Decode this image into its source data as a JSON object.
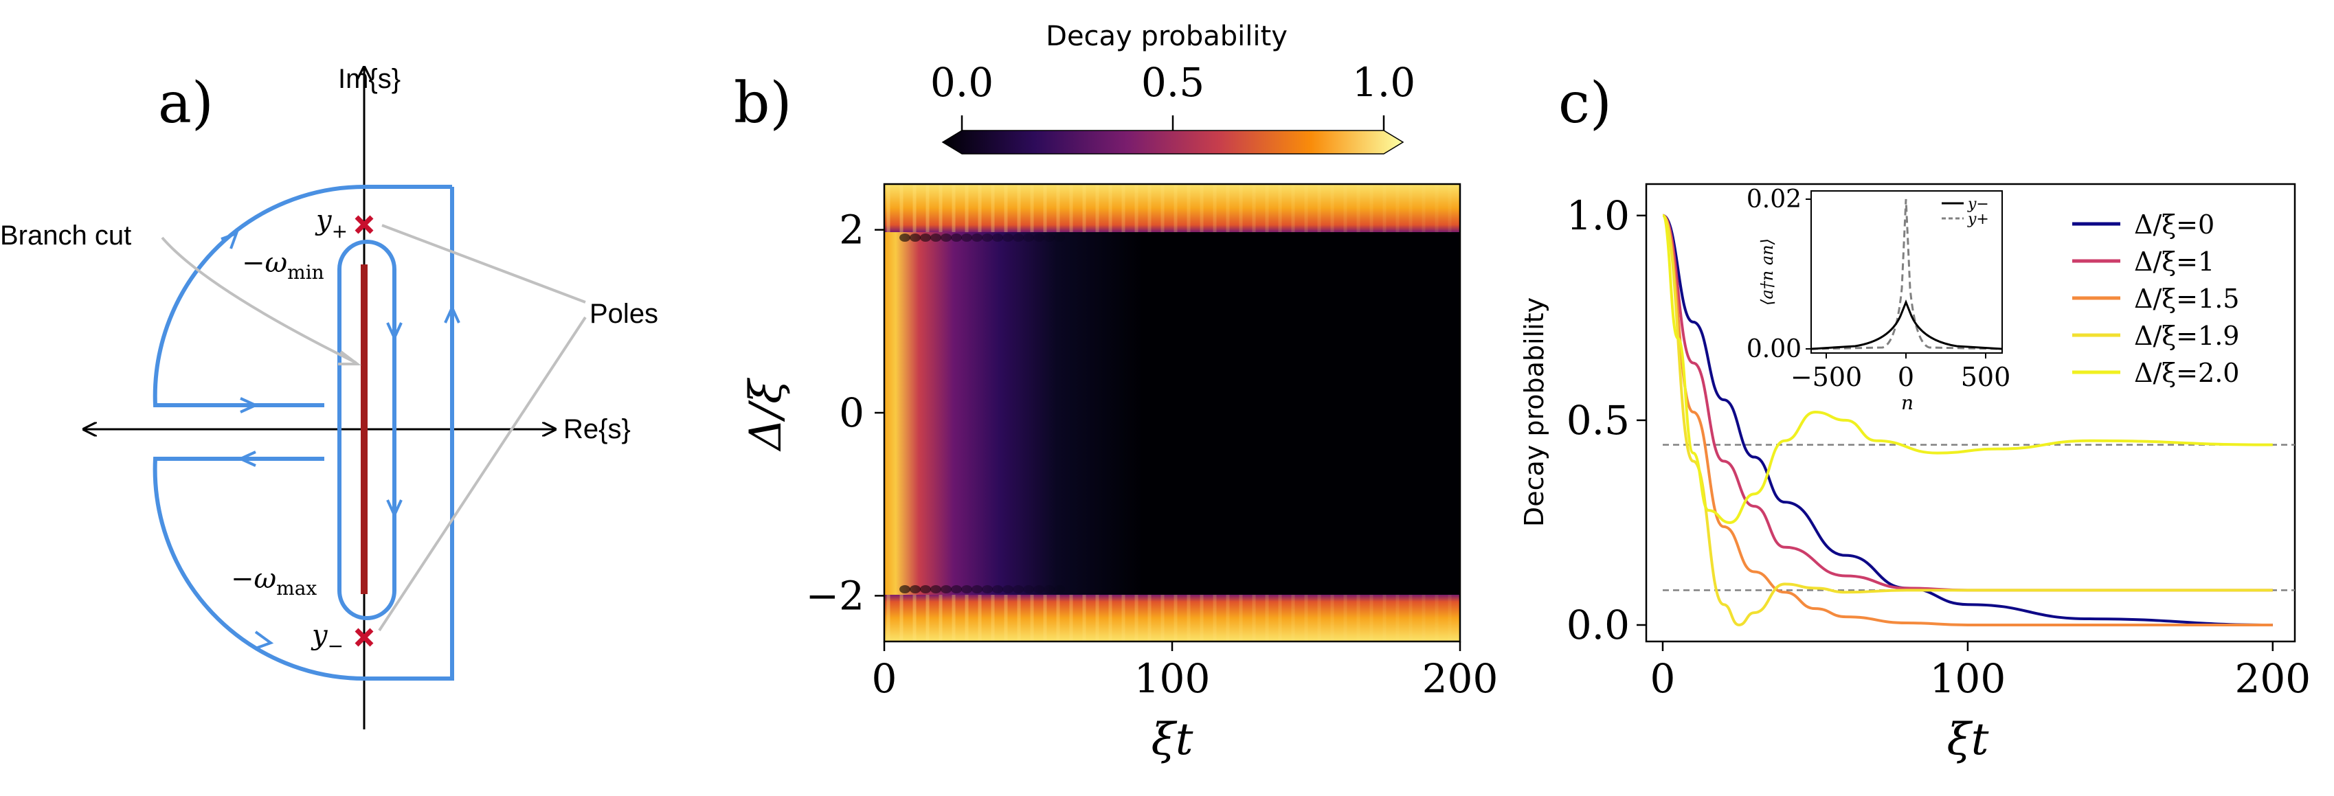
{
  "panel_a": {
    "label": "a)",
    "im_axis": "Im{s}",
    "re_axis": "Re{s}",
    "branch_cut": "Branch cut",
    "poles": "Poles",
    "y_plus": "y",
    "y_plus_sub": "+",
    "y_minus": "y",
    "y_minus_sub": "−",
    "omega_min": "−ω",
    "omega_min_sub": "min",
    "omega_max": "−ω",
    "omega_max_sub": "max",
    "colors": {
      "contour": "#4a90e2",
      "cut": "#a01d1d",
      "pole": "#c8102e",
      "annotation": "#c0c0c0"
    }
  },
  "panel_b": {
    "label": "b)",
    "colorbar_label": "Decay probability",
    "colorbar_ticks": [
      "0.0",
      "0.5",
      "1.0"
    ],
    "xlabel": "ξt",
    "ylabel": "Δ/ξ",
    "xticks": [
      "0",
      "100",
      "200"
    ],
    "yticks": [
      "2",
      "0",
      "−2"
    ],
    "colormap": [
      "#000004",
      "#420a68",
      "#932667",
      "#dd513a",
      "#fca50a",
      "#fcffa4"
    ]
  },
  "panel_c": {
    "label": "c)",
    "ylabel": "Decay probability",
    "xlabel": "ξt",
    "xticks": [
      "0",
      "100",
      "200"
    ],
    "yticks": [
      "1.0",
      "0.5",
      "0.0"
    ],
    "legend": [
      {
        "label": "Δ/ξ=0",
        "color": "#0d0887"
      },
      {
        "label": "Δ/ξ=1",
        "color": "#cc3d6a"
      },
      {
        "label": "Δ/ξ=1.5",
        "color": "#f48a3d"
      },
      {
        "label": "Δ/ξ=1.9",
        "color": "#f2e030"
      },
      {
        "label": "Δ/ξ=2.0",
        "color": "#f0f020"
      }
    ],
    "inset": {
      "ylabel": "⟨a†n an⟩",
      "xlabel": "n",
      "xticks": [
        "−500",
        "0",
        "500"
      ],
      "yticks": [
        "0.02",
        "0.00"
      ],
      "legend": [
        {
          "label": "y−",
          "style": "solid"
        },
        {
          "label": "y+",
          "style": "dashed"
        }
      ]
    }
  },
  "chart_data": [
    {
      "type": "heatmap",
      "xlabel": "ξt",
      "ylabel": "Δ/ξ",
      "xlim": [
        0,
        200
      ],
      "ylim": [
        -2.5,
        2.5
      ],
      "colorbar": {
        "label": "Decay probability",
        "range": [
          0,
          1
        ],
        "ticks": [
          0.0,
          0.5,
          1.0
        ]
      }
    },
    {
      "type": "line",
      "xlabel": "ξt",
      "ylabel": "Decay probability",
      "xlim": [
        0,
        205
      ],
      "ylim": [
        0,
        1.05
      ],
      "series": [
        {
          "name": "Δ/ξ=0",
          "x": [
            0,
            10,
            20,
            30,
            40,
            60,
            80,
            100,
            140,
            200
          ],
          "y": [
            1.0,
            0.74,
            0.55,
            0.41,
            0.3,
            0.17,
            0.09,
            0.05,
            0.015,
            0.0
          ]
        },
        {
          "name": "Δ/ξ=1",
          "x": [
            0,
            10,
            20,
            30,
            40,
            60,
            80,
            100,
            150,
            200
          ],
          "y": [
            1.0,
            0.64,
            0.4,
            0.29,
            0.19,
            0.12,
            0.09,
            0.085,
            0.085,
            0.085
          ]
        },
        {
          "name": "Δ/ξ=1.5",
          "x": [
            0,
            10,
            20,
            30,
            40,
            50,
            60,
            80,
            100,
            200
          ],
          "y": [
            1.0,
            0.52,
            0.24,
            0.13,
            0.08,
            0.04,
            0.02,
            0.005,
            0.0,
            0.0
          ]
        },
        {
          "name": "Δ/ξ=1.9",
          "x": [
            0,
            10,
            20,
            25,
            30,
            40,
            50,
            60,
            80,
            100,
            200
          ],
          "y": [
            1.0,
            0.4,
            0.05,
            0.0,
            0.03,
            0.1,
            0.09,
            0.08,
            0.085,
            0.085,
            0.085
          ]
        },
        {
          "name": "Δ/ξ=2.0",
          "x": [
            0,
            5,
            10,
            15,
            22,
            30,
            40,
            50,
            60,
            70,
            90,
            110,
            140,
            200
          ],
          "y": [
            1.0,
            0.7,
            0.42,
            0.28,
            0.25,
            0.32,
            0.45,
            0.52,
            0.5,
            0.45,
            0.42,
            0.43,
            0.45,
            0.44
          ]
        }
      ],
      "reference_lines": [
        0.44,
        0.085
      ]
    }
  ]
}
